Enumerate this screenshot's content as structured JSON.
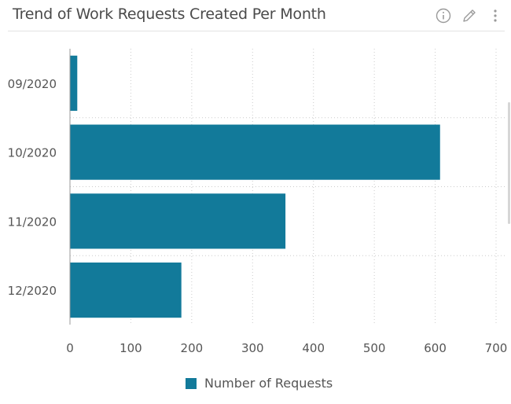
{
  "header": {
    "title": "Trend of Work Requests Created Per Month",
    "icons": [
      "info-icon",
      "edit-pencil-icon",
      "more-vertical-icon"
    ]
  },
  "colors": {
    "bar": "#127a9a",
    "grid": "#cccccc",
    "axis": "#999999",
    "text": "#555555"
  },
  "chart_data": {
    "type": "bar",
    "orientation": "horizontal",
    "title": "Trend of Work Requests Created Per Month",
    "categories": [
      "09/2020",
      "10/2020",
      "11/2020",
      "12/2020"
    ],
    "series": [
      {
        "name": "Number of Requests",
        "values": [
          12,
          608,
          354,
          183
        ]
      }
    ],
    "xlim": [
      0,
      700
    ],
    "xticks": [
      "0",
      "100",
      "200",
      "300",
      "400",
      "500",
      "600",
      "700"
    ],
    "grid": true,
    "legend_position": "bottom-center"
  }
}
